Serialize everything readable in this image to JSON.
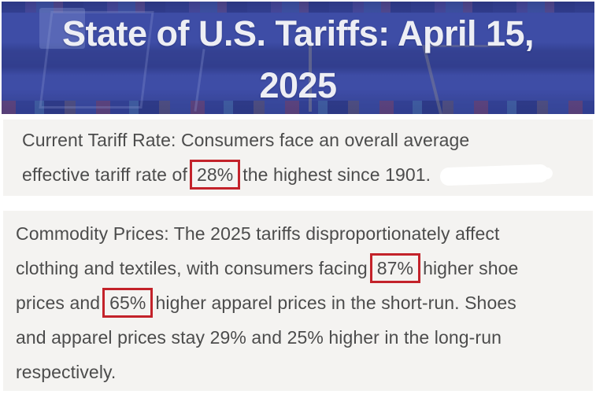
{
  "header": {
    "title_line1": "State of U.S. Tariffs: April 15,",
    "title_line2": "2025"
  },
  "colors": {
    "header_blue": "#3e4da5",
    "section_background": "#f4f3f1",
    "body_text": "#4c4c4c",
    "highlight_border_red": "#c3222a",
    "title_text": "#edeef4"
  },
  "section_current_tariff": {
    "lines": [
      {
        "text": "Current Tariff Rate: Consumers face an overall average"
      },
      {
        "pre": "effective tariff rate of",
        "boxed": "28%",
        "post": "the highest since 1901."
      }
    ]
  },
  "section_commodity_prices": {
    "lines": [
      {
        "text": "Commodity Prices: The 2025 tariffs disproportionately affect"
      },
      {
        "pre": "clothing and textiles, with consumers facing",
        "boxed": "87%",
        "post": "higher shoe"
      },
      {
        "pre": "prices and",
        "boxed": "65%",
        "post": "higher apparel prices in the short-run. Shoes"
      },
      {
        "text": "and apparel prices stay 29% and 25% higher in the long-run"
      },
      {
        "text": "respectively."
      }
    ]
  },
  "highlighted_values": [
    "28%",
    "87%",
    "65%"
  ]
}
